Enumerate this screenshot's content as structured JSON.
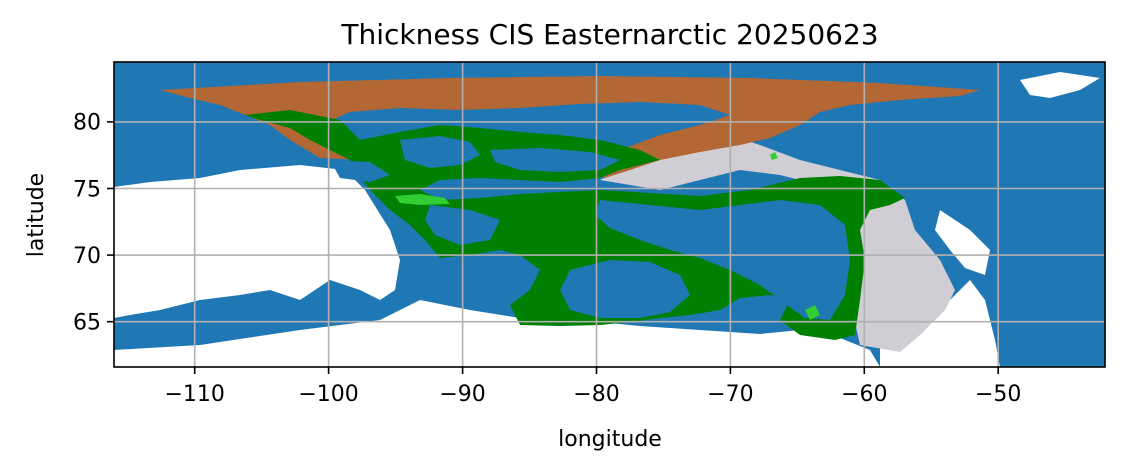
{
  "title": "Thickness CIS Easternarctic 20250623",
  "axes": {
    "xlabel": "longitude",
    "ylabel": "latitude",
    "xlim": [
      -116,
      -42
    ],
    "ylim": [
      61.6,
      84.5
    ],
    "xticks": [
      -110,
      -100,
      -90,
      -80,
      -70,
      -60,
      -50
    ],
    "yticks": [
      65,
      70,
      75,
      80
    ],
    "xtick_labels": [
      "−110",
      "−100",
      "−90",
      "−80",
      "−70",
      "−60",
      "−50"
    ],
    "ytick_labels": [
      "65",
      "70",
      "75",
      "80"
    ],
    "grid": true
  },
  "colors": {
    "land": "#1f77b4",
    "open_water": "#ffffff",
    "ice_class_green": "#008000",
    "ice_class_lightgreen": "#32cd32",
    "ice_class_brown": "#b36735",
    "ice_class_gray": "#d0ced4",
    "grid": "#b0b0b0"
  }
}
